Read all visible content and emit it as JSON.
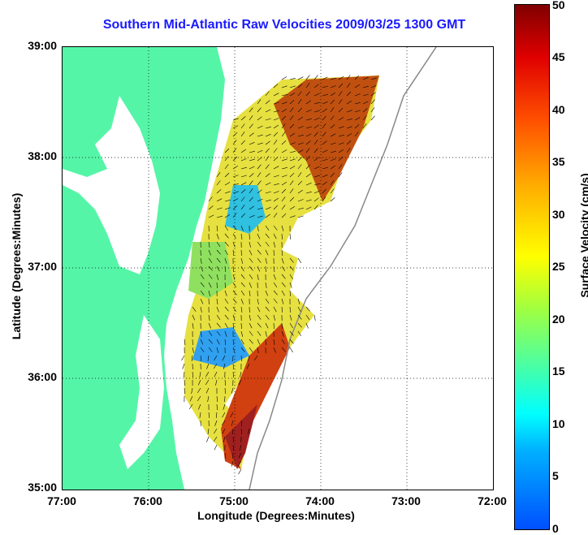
{
  "title": "Southern Mid-Atlantic Raw Velocities 2009/03/25 1300 GMT",
  "xlabel": "Longitude (Degrees:Minutes)",
  "ylabel": "Latitude (Degrees:Minutes)",
  "colorbar_label": "Surface Velocity (cm/s)",
  "x_ticks": [
    "77:00",
    "76:00",
    "75:00",
    "74:00",
    "73:00",
    "72:00"
  ],
  "y_ticks": [
    "39:00",
    "38:00",
    "37:00",
    "36:00",
    "35:00"
  ],
  "colorbar_ticks": [
    "50",
    "45",
    "40",
    "35",
    "30",
    "25",
    "20",
    "15",
    "10",
    "5",
    "0"
  ],
  "colors": {
    "land": "#55f5a8",
    "title": "#1a1aff",
    "coast": "#888888"
  },
  "map": {
    "lon_range": [
      -77,
      -72
    ],
    "lat_range": [
      35,
      39
    ],
    "color_range_cm_s": [
      0,
      50
    ]
  }
}
